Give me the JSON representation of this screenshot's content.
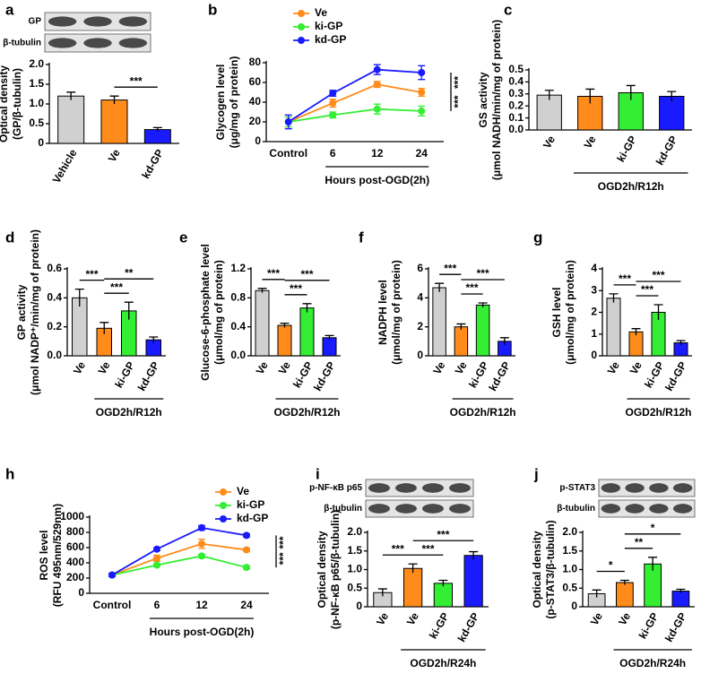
{
  "chart_data": [
    {
      "type": "bar",
      "label": "a",
      "blot_labels": [
        "GP",
        "β-tubulin"
      ],
      "ylabel": [
        "Optical density",
        "(GP/β-tubulin)"
      ],
      "categories": [
        "Vehicle",
        "Ve",
        "kd-GP"
      ],
      "values": [
        1.2,
        1.1,
        0.35
      ],
      "errors": [
        0.1,
        0.1,
        0.05
      ],
      "colors": [
        "#d0d0d0",
        "#ff8c1a",
        "#1a1aff"
      ],
      "ylim": [
        0,
        2.0
      ],
      "yticks": [
        0,
        0.5,
        {
          "value": 1,
          "label": "1.0"
        },
        1.5,
        {
          "value": 2,
          "label": "2.0"
        }
      ],
      "annotations": [
        {
          "text": "***",
          "pair": [
            1,
            2
          ]
        }
      ]
    },
    {
      "type": "line",
      "label": "b",
      "ylabel": [
        "Glycogen level",
        "(μg/mg of protein)"
      ],
      "categories": [
        "Control",
        "6",
        "12",
        "24"
      ],
      "series": [
        {
          "name": "Ve",
          "color": "#ff8c1a",
          "values": [
            20,
            39,
            58,
            50
          ],
          "errors": [
            5,
            4,
            3,
            4
          ]
        },
        {
          "name": "ki-GP",
          "color": "#33ee33",
          "values": [
            20,
            27,
            33,
            31
          ],
          "errors": [
            5,
            3,
            5,
            5
          ]
        },
        {
          "name": "kd-GP",
          "color": "#1a1aff",
          "values": [
            20,
            49,
            73,
            70
          ],
          "errors": [
            7,
            3,
            5,
            7
          ]
        }
      ],
      "legend": "top-left",
      "ylim": [
        0,
        80
      ],
      "yticks": [
        0,
        20,
        40,
        60,
        80
      ],
      "group": {
        "label": "Hours post-OGD(2h)",
        "span": [
          1,
          3
        ]
      },
      "annotations": [
        {
          "text": "***",
          "pair": [
            2,
            0
          ]
        },
        {
          "text": "***",
          "pair": [
            0,
            1
          ]
        }
      ]
    },
    {
      "type": "bar",
      "label": "c",
      "ylabel": [
        "GS activity",
        "(μmol NADH/min/mg of protein)"
      ],
      "categories": [
        "Ve",
        "Ve",
        "ki-GP",
        "kd-GP"
      ],
      "values": [
        0.29,
        0.28,
        0.31,
        0.28
      ],
      "errors": [
        0.04,
        0.06,
        0.06,
        0.04
      ],
      "colors": [
        "#d0d0d0",
        "#ff8c1a",
        "#33ee33",
        "#1a1aff"
      ],
      "ylim": [
        0,
        0.5
      ],
      "yticks": [
        {
          "value": 0,
          "label": "0.0"
        },
        0.1,
        0.2,
        0.3,
        0.4,
        0.5
      ],
      "group": {
        "label": "OGD2h/R12h",
        "span": [
          1,
          3
        ]
      }
    },
    {
      "type": "bar",
      "label": "d",
      "ylabel": [
        "GP activity",
        "(μmol NADP⁺/min/mg of protein)"
      ],
      "categories": [
        "Ve",
        "Ve",
        "ki-GP",
        "kd-GP"
      ],
      "values": [
        0.4,
        0.19,
        0.31,
        0.11
      ],
      "errors": [
        0.06,
        0.04,
        0.06,
        0.02
      ],
      "colors": [
        "#d0d0d0",
        "#ff8c1a",
        "#33ee33",
        "#1a1aff"
      ],
      "ylim": [
        0,
        0.6
      ],
      "yticks": [
        {
          "value": 0,
          "label": "0.0"
        },
        0.2,
        0.4,
        0.6
      ],
      "group": {
        "label": "OGD2h/R12h",
        "span": [
          1,
          3
        ]
      },
      "annotations": [
        {
          "text": "***",
          "pair": [
            0,
            1
          ]
        },
        {
          "text": "***",
          "pair": [
            1,
            2
          ]
        },
        {
          "text": "**",
          "pair": [
            1,
            3
          ]
        }
      ]
    },
    {
      "type": "bar",
      "label": "e",
      "ylabel": [
        "Glucose-6-phosphate level",
        "(μmol/mg of protein)"
      ],
      "categories": [
        "Ve",
        "Ve",
        "ki-GP",
        "kd-GP"
      ],
      "values": [
        0.9,
        0.42,
        0.66,
        0.25
      ],
      "errors": [
        0.03,
        0.03,
        0.06,
        0.03
      ],
      "colors": [
        "#d0d0d0",
        "#ff8c1a",
        "#33ee33",
        "#1a1aff"
      ],
      "ylim": [
        0,
        1.2
      ],
      "yticks": [
        {
          "value": 0,
          "label": "0.0"
        },
        0.4,
        0.8,
        1.2
      ],
      "group": {
        "label": "OGD2h/R12h",
        "span": [
          1,
          3
        ]
      },
      "annotations": [
        {
          "text": "***",
          "pair": [
            0,
            1
          ]
        },
        {
          "text": "***",
          "pair": [
            1,
            2
          ]
        },
        {
          "text": "***",
          "pair": [
            1,
            3
          ]
        }
      ]
    },
    {
      "type": "bar",
      "label": "f",
      "ylabel": [
        "NADPH level",
        "(μmol/mg of protein)"
      ],
      "categories": [
        "Ve",
        "Ve",
        "ki-GP",
        "kd-GP"
      ],
      "values": [
        4.7,
        2.0,
        3.5,
        1.0
      ],
      "errors": [
        0.3,
        0.2,
        0.15,
        0.25
      ],
      "colors": [
        "#d0d0d0",
        "#ff8c1a",
        "#33ee33",
        "#1a1aff"
      ],
      "ylim": [
        0,
        6
      ],
      "yticks": [
        0,
        2,
        4,
        6
      ],
      "group": {
        "label": "OGD2h/R12h",
        "span": [
          1,
          3
        ]
      },
      "annotations": [
        {
          "text": "***",
          "pair": [
            0,
            1
          ]
        },
        {
          "text": "***",
          "pair": [
            1,
            2
          ]
        },
        {
          "text": "***",
          "pair": [
            1,
            3
          ]
        }
      ]
    },
    {
      "type": "bar",
      "label": "g",
      "ylabel": [
        "GSH level",
        "(μmol/mg of protein)"
      ],
      "categories": [
        "Ve",
        "Ve",
        "ki-GP",
        "kd-GP"
      ],
      "values": [
        2.65,
        1.1,
        2.0,
        0.6
      ],
      "errors": [
        0.2,
        0.15,
        0.35,
        0.1
      ],
      "colors": [
        "#d0d0d0",
        "#ff8c1a",
        "#33ee33",
        "#1a1aff"
      ],
      "ylim": [
        0,
        4
      ],
      "yticks": [
        0,
        1,
        2,
        3,
        4
      ],
      "group": {
        "label": "OGD2h/R12h",
        "span": [
          1,
          3
        ]
      },
      "annotations": [
        {
          "text": "***",
          "pair": [
            0,
            1
          ]
        },
        {
          "text": "***",
          "pair": [
            1,
            2
          ]
        },
        {
          "text": "***",
          "pair": [
            1,
            3
          ]
        }
      ]
    },
    {
      "type": "line",
      "label": "h",
      "ylabel": [
        "ROS level",
        "(RFU 495nm/529nm)"
      ],
      "categories": [
        "Control",
        "6",
        "12",
        "24"
      ],
      "series": [
        {
          "name": "Ve",
          "color": "#ff8c1a",
          "values": [
            240,
            460,
            650,
            570
          ],
          "errors": [
            20,
            40,
            60,
            20
          ]
        },
        {
          "name": "ki-GP",
          "color": "#33ee33",
          "values": [
            240,
            370,
            490,
            340
          ],
          "errors": [
            20,
            20,
            20,
            20
          ]
        },
        {
          "name": "kd-GP",
          "color": "#1a1aff",
          "values": [
            240,
            580,
            860,
            760
          ],
          "errors": [
            20,
            20,
            30,
            20
          ]
        }
      ],
      "legend": "top-center",
      "ylim": [
        0,
        1000
      ],
      "yticks": [
        0,
        200,
        400,
        600,
        800,
        1000
      ],
      "group": {
        "label": "Hours post-OGD(2h)",
        "span": [
          1,
          3
        ]
      },
      "annotations": [
        {
          "text": "***",
          "pair": [
            2,
            0
          ]
        },
        {
          "text": "***",
          "pair": [
            0,
            1
          ]
        }
      ]
    },
    {
      "type": "bar",
      "label": "i",
      "blot_labels": [
        "p-NF-κB p65",
        "β-tubulin"
      ],
      "ylabel": [
        "Optical density",
        "(p-NF-κB p65/β-tubulin)"
      ],
      "categories": [
        "Ve",
        "Ve",
        "ki-GP",
        "kd-GP"
      ],
      "values": [
        0.38,
        1.03,
        0.63,
        1.38
      ],
      "errors": [
        0.1,
        0.12,
        0.08,
        0.1
      ],
      "colors": [
        "#d0d0d0",
        "#ff8c1a",
        "#33ee33",
        "#1a1aff"
      ],
      "ylim": [
        0,
        2.0
      ],
      "yticks": [
        0,
        0.5,
        {
          "value": 1,
          "label": "1.0"
        },
        1.5,
        {
          "value": 2,
          "label": "2.0"
        }
      ],
      "group": {
        "label": "OGD2h/R24h",
        "span": [
          1,
          3
        ]
      },
      "annotations": [
        {
          "text": "***",
          "pair": [
            0,
            1
          ]
        },
        {
          "text": "***",
          "pair": [
            1,
            2
          ]
        },
        {
          "text": "***",
          "pair": [
            1,
            3
          ]
        }
      ]
    },
    {
      "type": "bar",
      "label": "j",
      "blot_labels": [
        "p-STAT3",
        "β-tubulin"
      ],
      "ylabel": [
        "Optical density",
        "(p-STAT3/β-tubulin)"
      ],
      "categories": [
        "Ve",
        "Ve",
        "ki-GP",
        "kd-GP"
      ],
      "values": [
        0.35,
        0.65,
        1.15,
        0.42
      ],
      "errors": [
        0.1,
        0.06,
        0.18,
        0.05
      ],
      "colors": [
        "#d0d0d0",
        "#ff8c1a",
        "#33ee33",
        "#1a1aff"
      ],
      "ylim": [
        0,
        2.0
      ],
      "yticks": [
        0,
        0.5,
        {
          "value": 1,
          "label": "1.0"
        },
        1.5,
        {
          "value": 2,
          "label": "2.0"
        }
      ],
      "group": {
        "label": "OGD2h/R24h",
        "span": [
          1,
          3
        ]
      },
      "annotations": [
        {
          "text": "*",
          "pair": [
            0,
            1
          ]
        },
        {
          "text": "**",
          "pair": [
            1,
            2
          ]
        },
        {
          "text": "*",
          "pair": [
            1,
            3
          ]
        }
      ]
    }
  ]
}
